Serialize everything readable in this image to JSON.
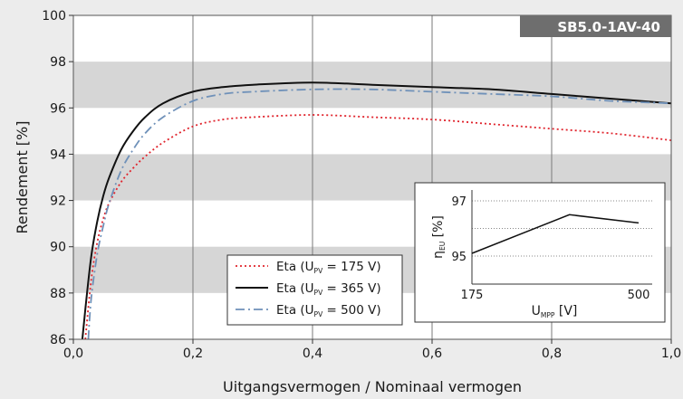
{
  "chart_data": [
    {
      "type": "line",
      "badge": "SB5.0-1AV-40",
      "xlabel": "Uitgangsvermogen / Nominaal vermogen",
      "ylabel": "Rendement [%]",
      "xlim": [
        0,
        1.0
      ],
      "ylim": [
        86,
        100
      ],
      "x_ticks": [
        "0,0",
        "0,2",
        "0,4",
        "0,6",
        "0,8",
        "1,0"
      ],
      "x_tick_values": [
        0,
        0.2,
        0.4,
        0.6,
        0.8,
        1.0
      ],
      "y_ticks": [
        "86",
        "88",
        "90",
        "92",
        "94",
        "96",
        "98",
        "100"
      ],
      "y_tick_values": [
        86,
        88,
        90,
        92,
        94,
        96,
        98,
        100
      ],
      "shaded_bands": [
        [
          88,
          90
        ],
        [
          92,
          94
        ],
        [
          96,
          98
        ]
      ],
      "grid": "vertical",
      "legend_position": "bottom-center",
      "series": [
        {
          "name": "Eta (U",
          "name_sub": "PV",
          "name_tail": " = 175 V)",
          "color": "#e0242d",
          "style": "dotted",
          "x": [
            0.02,
            0.03,
            0.04,
            0.05,
            0.06,
            0.08,
            0.1,
            0.12,
            0.15,
            0.2,
            0.25,
            0.3,
            0.4,
            0.5,
            0.6,
            0.7,
            0.8,
            0.9,
            1.0
          ],
          "y": [
            86.0,
            88.6,
            90.2,
            91.2,
            91.9,
            92.8,
            93.4,
            93.9,
            94.5,
            95.2,
            95.5,
            95.6,
            95.7,
            95.6,
            95.5,
            95.3,
            95.1,
            94.9,
            94.6
          ]
        },
        {
          "name": "Eta (U",
          "name_sub": "PV",
          "name_tail": " = 365 V)",
          "color": "#111111",
          "style": "solid",
          "x": [
            0.015,
            0.02,
            0.03,
            0.04,
            0.05,
            0.06,
            0.08,
            0.1,
            0.12,
            0.15,
            0.2,
            0.25,
            0.3,
            0.4,
            0.5,
            0.6,
            0.7,
            0.8,
            0.9,
            1.0
          ],
          "y": [
            86.0,
            87.3,
            89.6,
            91.1,
            92.2,
            93.0,
            94.2,
            95.0,
            95.6,
            96.2,
            96.7,
            96.9,
            97.0,
            97.1,
            97.0,
            96.9,
            96.8,
            96.6,
            96.4,
            96.2
          ]
        },
        {
          "name": "Eta (U",
          "name_sub": "PV",
          "name_tail": " = 500 V)",
          "color": "#6f91b9",
          "style": "dashdot",
          "x": [
            0.025,
            0.03,
            0.04,
            0.05,
            0.06,
            0.08,
            0.1,
            0.12,
            0.15,
            0.2,
            0.25,
            0.3,
            0.4,
            0.5,
            0.6,
            0.7,
            0.8,
            0.9,
            1.0
          ],
          "y": [
            86.0,
            87.8,
            89.7,
            90.9,
            91.9,
            93.3,
            94.2,
            94.9,
            95.6,
            96.3,
            96.6,
            96.7,
            96.8,
            96.8,
            96.7,
            96.6,
            96.5,
            96.3,
            96.2
          ]
        }
      ]
    },
    {
      "type": "line",
      "xlabel": "U",
      "xlabel_sub": "MPP",
      "xlabel_tail": " [V]",
      "ylabel": "η",
      "ylabel_sub": "EU",
      "ylabel_tail": " [%]",
      "xlim": [
        175,
        500
      ],
      "ylim": [
        95,
        97
      ],
      "x_ticks": [
        "175",
        "500"
      ],
      "x_tick_values": [
        175,
        500
      ],
      "y_ticks": [
        "95",
        "97"
      ],
      "y_tick_values": [
        95,
        97
      ],
      "grid": "horizontal-dotted",
      "series": [
        {
          "color": "#111111",
          "x": [
            175,
            365,
            500
          ],
          "y": [
            95.1,
            96.5,
            96.2
          ]
        }
      ]
    }
  ]
}
